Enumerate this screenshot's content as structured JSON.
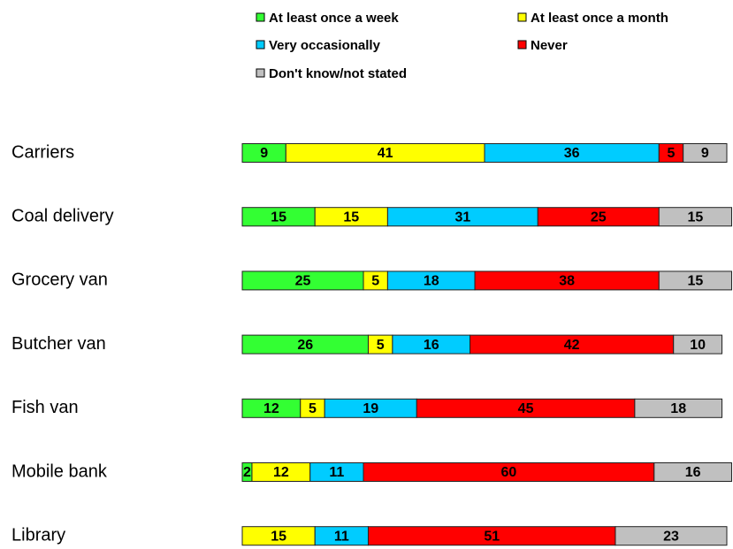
{
  "chart_data": {
    "type": "stacked-barh",
    "categories": [
      "Carriers",
      "Coal delivery",
      "Grocery van",
      "Butcher van",
      "Fish van",
      "Mobile bank",
      "Library"
    ],
    "series": [
      {
        "name": "At least once a week",
        "color": "#33ff33",
        "values": [
          9,
          15,
          25,
          26,
          12,
          2,
          null
        ]
      },
      {
        "name": "At least once a month",
        "color": "#ffff00",
        "values": [
          41,
          15,
          5,
          5,
          5,
          12,
          15
        ]
      },
      {
        "name": "Very occasionally",
        "color": "#00ccff",
        "values": [
          36,
          31,
          18,
          16,
          19,
          11,
          11
        ]
      },
      {
        "name": "Never",
        "color": "#ff0000",
        "values": [
          5,
          25,
          38,
          42,
          45,
          60,
          51
        ]
      },
      {
        "name": "Don't know/not stated",
        "color": "#c0c0c0",
        "values": [
          9,
          15,
          15,
          10,
          18,
          16,
          23
        ]
      }
    ],
    "legend": "top"
  }
}
